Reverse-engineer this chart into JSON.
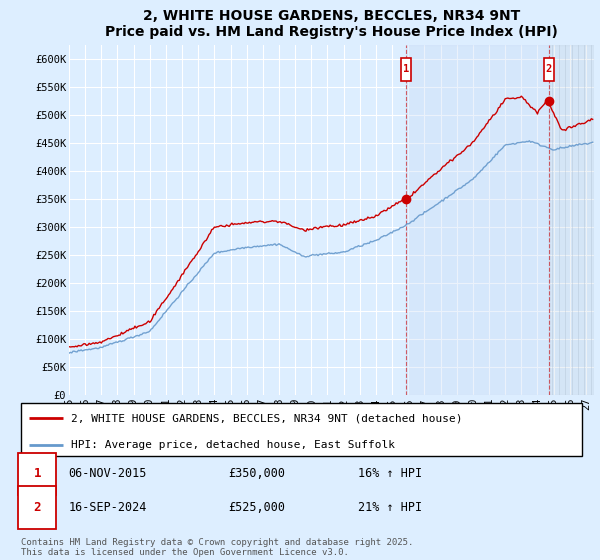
{
  "title": "2, WHITE HOUSE GARDENS, BECCLES, NR34 9NT",
  "subtitle": "Price paid vs. HM Land Registry's House Price Index (HPI)",
  "ylim": [
    0,
    625000
  ],
  "yticks": [
    0,
    50000,
    100000,
    150000,
    200000,
    250000,
    300000,
    350000,
    400000,
    450000,
    500000,
    550000,
    600000
  ],
  "ytick_labels": [
    "£0",
    "£50K",
    "£100K",
    "£150K",
    "£200K",
    "£250K",
    "£300K",
    "£350K",
    "£400K",
    "£450K",
    "£500K",
    "£550K",
    "£600K"
  ],
  "xlim_start": 1995.0,
  "xlim_end": 2027.5,
  "marker1_x": 2015.85,
  "marker1_y": 350000,
  "marker1_label": "1",
  "marker1_date": "06-NOV-2015",
  "marker1_price": "£350,000",
  "marker1_hpi": "16% ↑ HPI",
  "marker2_x": 2024.71,
  "marker2_y": 525000,
  "marker2_label": "2",
  "marker2_date": "16-SEP-2024",
  "marker2_price": "£525,000",
  "marker2_hpi": "21% ↑ HPI",
  "legend_line1": "2, WHITE HOUSE GARDENS, BECCLES, NR34 9NT (detached house)",
  "legend_line2": "HPI: Average price, detached house, East Suffolk",
  "footer": "Contains HM Land Registry data © Crown copyright and database right 2025.\nThis data is licensed under the Open Government Licence v3.0.",
  "red_color": "#cc0000",
  "blue_color": "#6699cc",
  "bg_color": "#ddeeff",
  "plot_bg": "#ddeeff",
  "shade_color": "#c8daf5",
  "grid_color": "#ffffff",
  "title_fontsize": 10,
  "subtitle_fontsize": 9,
  "axis_fontsize": 7.5,
  "legend_fontsize": 8
}
